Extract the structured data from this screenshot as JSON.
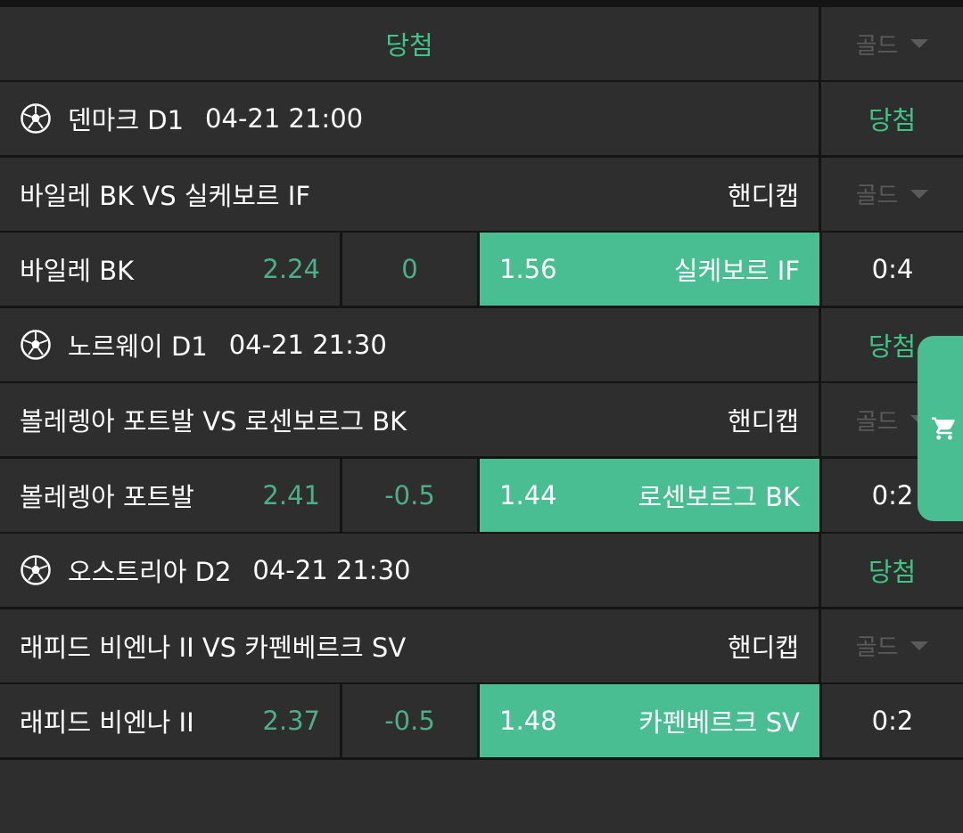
{
  "header": {
    "status": "당첨",
    "gold": "골드"
  },
  "colors": {
    "accent": "#49be93",
    "win_text": "#3cc585",
    "odds_text": "#4caf8a"
  },
  "matches": [
    {
      "league": "덴마크 D1",
      "time": "04-21 21:00",
      "status": "당첨",
      "title": "바일레 BK VS 실케보르 IF",
      "market": "핸디캡",
      "gold": "골드",
      "home": "바일레 BK",
      "home_odds": "2.24",
      "handicap": "0",
      "away_odds": "1.56",
      "away": "실케보르 IF",
      "score": "0:4",
      "selected": "away"
    },
    {
      "league": "노르웨이 D1",
      "time": "04-21 21:30",
      "status": "당첨",
      "title": "볼레렝아 포트발 VS 로센보르그 BK",
      "market": "핸디캡",
      "gold": "골드",
      "home": "볼레렝아 포트발",
      "home_odds": "2.41",
      "handicap": "-0.5",
      "away_odds": "1.44",
      "away": "로센보르그 BK",
      "score": "0:2",
      "selected": "away"
    },
    {
      "league": "오스트리아 D2",
      "time": "04-21 21:30",
      "status": "당첨",
      "title": "래피드 비엔나 II VS 카펜베르크 SV",
      "market": "핸디캡",
      "gold": "골드",
      "home": "래피드 비엔나 II",
      "home_odds": "2.37",
      "handicap": "-0.5",
      "away_odds": "1.48",
      "away": "카펜베르크 SV",
      "score": "0:2",
      "selected": "away"
    }
  ],
  "cart": {
    "icon": "cart-icon"
  }
}
